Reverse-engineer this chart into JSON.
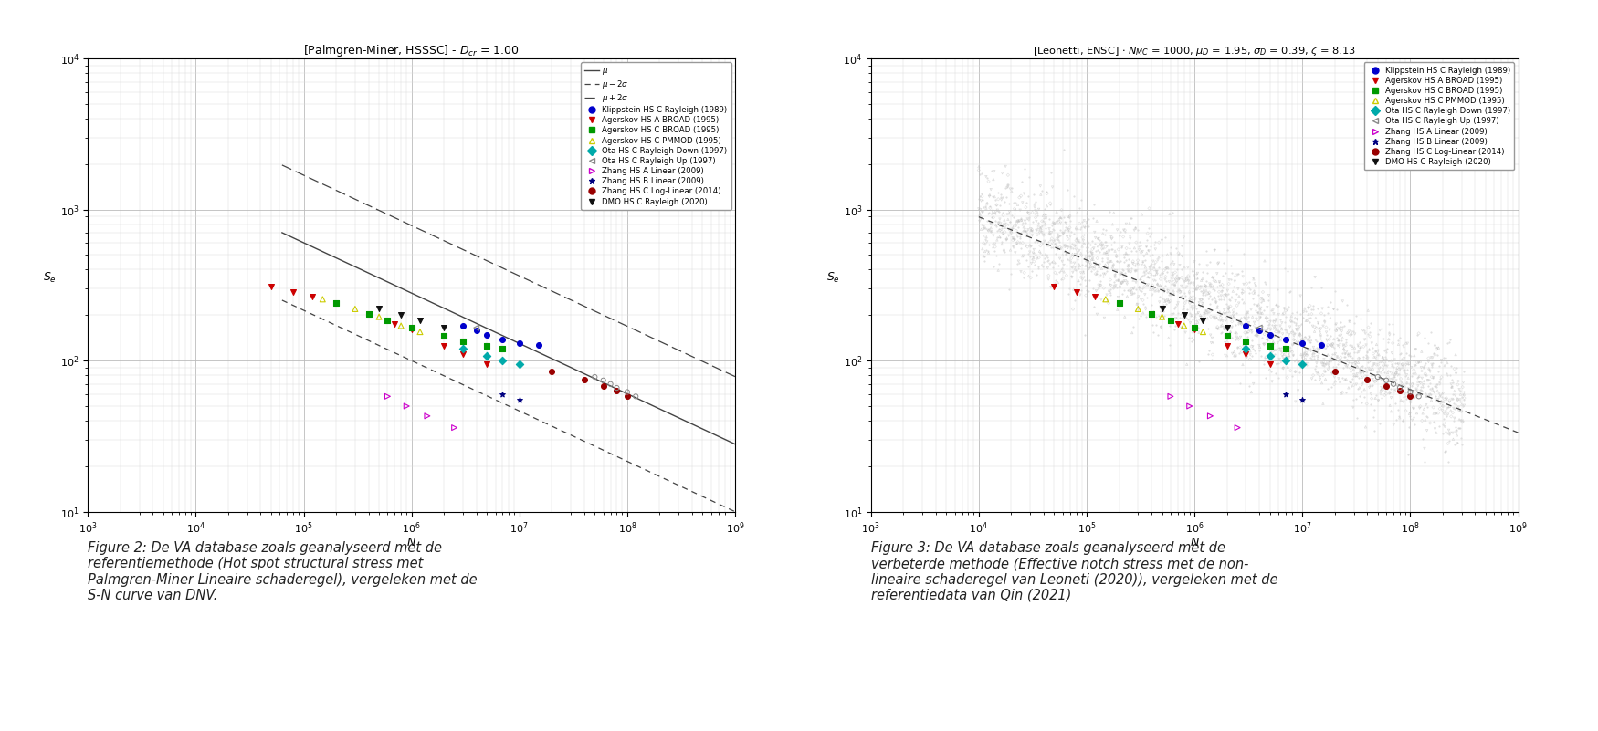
{
  "fig_width": 17.5,
  "fig_height": 8.01,
  "background_color": "#ffffff",
  "plot1_title": "[Palmgren-Miner, HSSSC] - $D_{cr}$ = 1.00",
  "plot2_title": "[Leonetti, ENSC] $\\cdot$ $N_{MC}$ = 1000, $\\mu_D$ = 1.95, $\\sigma_D$ = 0.39, $\\zeta$ = 8.13",
  "xlabel": "$N$",
  "ylabel1": "$S_e$",
  "ylabel2": "$S_e$",
  "xlim_log": [
    3,
    9
  ],
  "ylim_log": [
    1,
    4
  ],
  "sn_mu_ref_N": 1000000.0,
  "sn_mu_ref_S": 280,
  "sn_slope_m": 3.0,
  "sn_sigma_factor": 2.8,
  "datasets": [
    {
      "name": "Klippstein HS C Rayleigh (1989)",
      "color": "#0000cc",
      "marker": "o",
      "filled": true,
      "edgecolor": "#0000cc",
      "x": [
        3000000.0,
        4000000.0,
        5000000.0,
        7000000.0,
        10000000.0,
        15000000.0
      ],
      "y": [
        170,
        158,
        148,
        138,
        130,
        127
      ]
    },
    {
      "name": "Agerskov HS A BROAD (1995)",
      "color": "#cc0000",
      "marker": "v",
      "filled": true,
      "edgecolor": "#cc0000",
      "x": [
        50000.0,
        80000.0,
        120000.0,
        200000.0,
        400000.0,
        700000.0,
        1000000.0,
        2000000.0,
        3000000.0,
        5000000.0
      ],
      "y": [
        310,
        285,
        265,
        240,
        205,
        175,
        160,
        125,
        110,
        95
      ]
    },
    {
      "name": "Agerskov HS C BROAD (1995)",
      "color": "#009900",
      "marker": "s",
      "filled": true,
      "edgecolor": "#009900",
      "x": [
        200000.0,
        400000.0,
        600000.0,
        1000000.0,
        2000000.0,
        3000000.0,
        5000000.0,
        7000000.0
      ],
      "y": [
        240,
        205,
        185,
        165,
        145,
        135,
        125,
        120
      ]
    },
    {
      "name": "Agerskov HS C PMMOD (1995)",
      "color": "#cccc00",
      "marker": "^",
      "filled": false,
      "edgecolor": "#cccc00",
      "x": [
        150000.0,
        300000.0,
        500000.0,
        800000.0,
        1200000.0
      ],
      "y": [
        255,
        220,
        195,
        170,
        155
      ]
    },
    {
      "name": "Ota HS C Rayleigh Down (1997)",
      "color": "#00aaaa",
      "marker": "D",
      "filled": true,
      "edgecolor": "#00aaaa",
      "x": [
        3000000.0,
        5000000.0,
        7000000.0,
        10000000.0
      ],
      "y": [
        120,
        108,
        100,
        95
      ]
    },
    {
      "name": "Ota HS C Rayleigh Up (1997)",
      "color": "#888888",
      "marker": "<",
      "filled": false,
      "edgecolor": "#888888",
      "x": [
        4000000.0
      ],
      "y": [
        165
      ]
    },
    {
      "name": "Zhang HS A Linear (2009)",
      "color": "#cc00cc",
      "marker": ">",
      "filled": false,
      "edgecolor": "#cc00cc",
      "x": [
        600000.0,
        900000.0,
        1400000.0,
        2500000.0
      ],
      "y": [
        58,
        50,
        43,
        36
      ]
    },
    {
      "name": "Zhang HS B Linear (2009)",
      "color": "#000080",
      "marker": "*",
      "filled": true,
      "edgecolor": "#000080",
      "x": [
        7000000.0,
        10000000.0
      ],
      "y": [
        60,
        55
      ]
    },
    {
      "name": "Zhang HS C Log-Linear (2014)",
      "color": "#990000",
      "marker": "o",
      "filled": true,
      "edgecolor": "#990000",
      "x": [
        20000000.0,
        40000000.0,
        60000000.0,
        80000000.0,
        100000000.0
      ],
      "y": [
        85,
        75,
        68,
        63,
        58
      ]
    },
    {
      "name": "DMO HS C Rayleigh (2020)",
      "color": "#111111",
      "marker": "v",
      "filled": true,
      "edgecolor": "#111111",
      "x": [
        500000.0,
        800000.0,
        1200000.0,
        2000000.0
      ],
      "y": [
        220,
        200,
        185,
        165
      ]
    }
  ],
  "ota_up_cluster_x": [
    50000000.0,
    60000000.0,
    70000000.0,
    80000000.0,
    100000000.0,
    120000000.0
  ],
  "ota_up_cluster_y": [
    78,
    74,
    70,
    66,
    62,
    58
  ],
  "figure2_caption": "Figure 2: De VA database zoals geanalyseerd met de\nreferentiemethode (Hot spot structural stress met\nPalmgren-Miner Lineaire schaderegel), vergeleken met de\nS-N curve van DNV.",
  "figure3_caption": "Figure 3: De VA database zoals geanalyseerd met de\nverbeterde methode (Effective notch stress met de non-\nlineaire schaderegel van Leoneti (2020)), vergeleken met de\nreferentiedata van Qin (2021)"
}
